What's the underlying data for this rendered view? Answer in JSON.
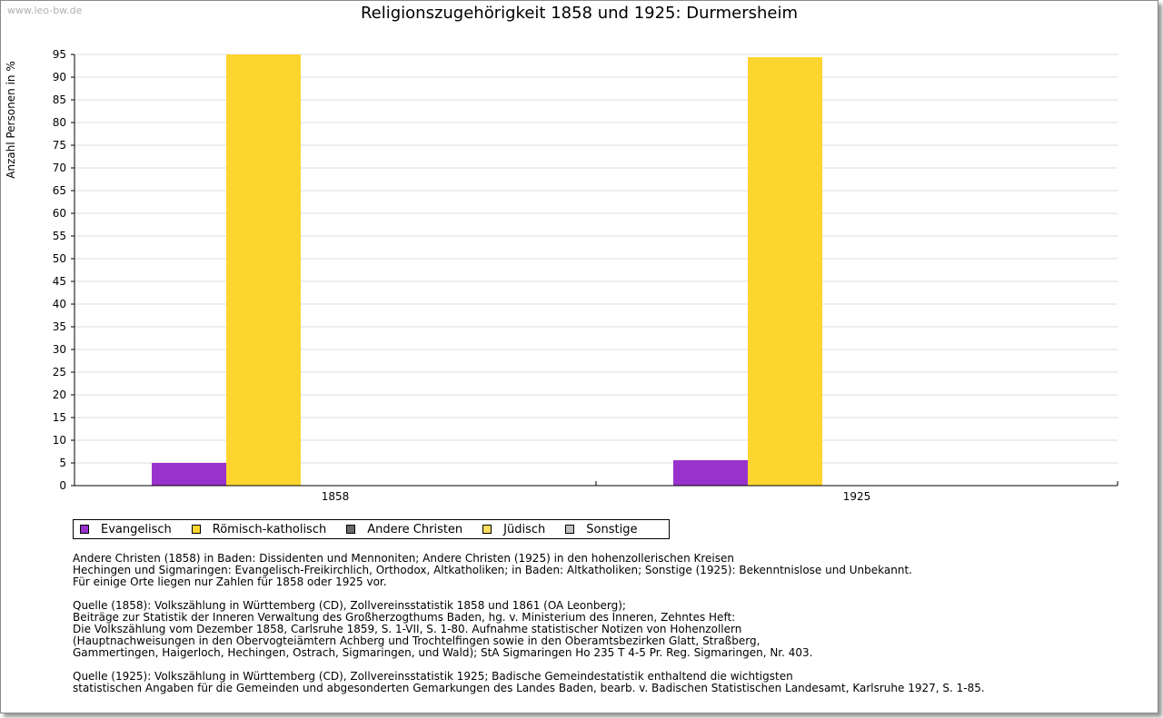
{
  "watermark": "www.leo-bw.de",
  "chart_data": {
    "type": "bar",
    "title": "Religionszugehörigkeit 1858 und 1925: Durmersheim",
    "ylabel": "Anzahl Personen in %",
    "xlabel": "",
    "ylim": [
      0,
      95
    ],
    "ytick_step": 5,
    "grid": true,
    "categories": [
      "1858",
      "1925"
    ],
    "series": [
      {
        "name": "Evangelisch",
        "color": "#9932cc",
        "values": [
          5.0,
          5.6
        ]
      },
      {
        "name": "Römisch-katholisch",
        "color": "#fdd52f",
        "values": [
          95.0,
          94.4
        ]
      },
      {
        "name": "Andere Christen",
        "color": "#696969",
        "values": [
          0,
          0
        ]
      },
      {
        "name": "Jüdisch",
        "color": "#fddd60",
        "values": [
          0,
          0
        ]
      },
      {
        "name": "Sonstige",
        "color": "#c0c0c0",
        "values": [
          0,
          0
        ]
      }
    ],
    "legend_position": "bottom"
  },
  "notes": [
    [
      "Andere Christen (1858) in Baden: Dissidenten und Mennoniten; Andere Christen (1925) in den hohenzollerischen Kreisen",
      "Hechingen und Sigmaringen: Evangelisch-Freikirchlich, Orthodox, Altkatholiken; in Baden: Altkatholiken; Sonstige (1925): Bekenntnislose und Unbekannt.",
      "Für einige Orte liegen nur Zahlen für 1858 oder 1925 vor."
    ],
    [
      "Quelle (1858): Volkszählung in Württemberg (CD), Zollvereinsstatistik 1858 und 1861 (OA Leonberg);",
      "Beiträge zur Statistik der Inneren Verwaltung des Großherzogthums Baden, hg. v. Ministerium des Inneren, Zehntes Heft:",
      "Die Volkszählung vom Dezember 1858, Carlsruhe 1859, S. 1-VII, S. 1-80. Aufnahme statistischer Notizen von Hohenzollern",
      "(Hauptnachweisungen in den Obervogteiämtern Achberg und Trochtelfingen sowie in den Oberamtsbezirken Glatt, Straßberg,",
      "Gammertingen, Haigerloch, Hechingen, Ostrach, Sigmaringen, und Wald); StA Sigmaringen Ho 235 T 4-5 Pr. Reg. Sigmaringen, Nr. 403."
    ],
    [
      "Quelle (1925): Volkszählung in Württemberg (CD), Zollvereinsstatistik 1925; Badische Gemeindestatistik enthaltend die wichtigsten",
      "statistischen Angaben für die Gemeinden und abgesonderten Gemarkungen des Landes Baden, bearb. v. Badischen Statistischen Landesamt, Karlsruhe 1927, S. 1-85."
    ]
  ]
}
